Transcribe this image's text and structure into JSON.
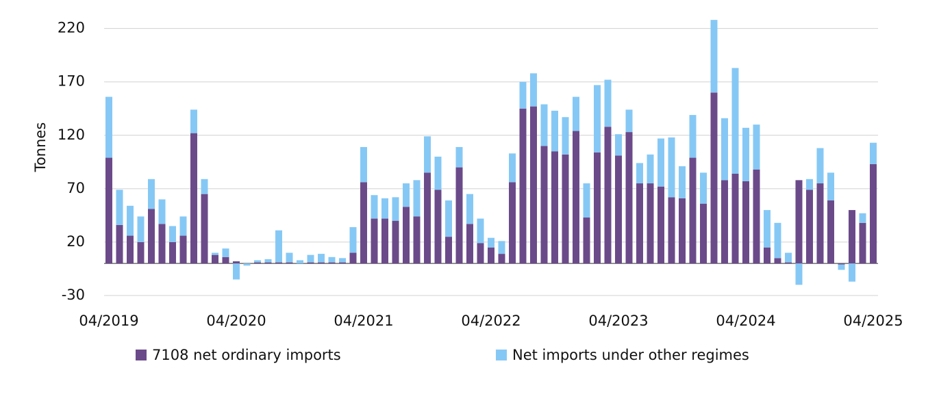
{
  "chart_data": {
    "type": "bar",
    "stacked": true,
    "y_label": "Tonnes",
    "categories": [
      "04/2019",
      null,
      null,
      null,
      null,
      null,
      null,
      null,
      null,
      null,
      null,
      null,
      "04/2020",
      null,
      null,
      null,
      null,
      null,
      null,
      null,
      null,
      null,
      null,
      null,
      "04/2021",
      null,
      null,
      null,
      null,
      null,
      null,
      null,
      null,
      null,
      null,
      null,
      "04/2022",
      null,
      null,
      null,
      null,
      null,
      null,
      null,
      null,
      null,
      null,
      null,
      "04/2023",
      null,
      null,
      null,
      null,
      null,
      null,
      null,
      null,
      null,
      null,
      null,
      "04/2024",
      null,
      null,
      null,
      null,
      null,
      null,
      null,
      null,
      null,
      null,
      null,
      "04/2025"
    ],
    "series": [
      {
        "name": "7108 net ordinary imports",
        "color": "#6b4a8a",
        "values": [
          99,
          36,
          26,
          20,
          51,
          37,
          20,
          26,
          122,
          65,
          8,
          6,
          2,
          0,
          1,
          1,
          1,
          1,
          0,
          1,
          1,
          1,
          1,
          10,
          76,
          42,
          42,
          40,
          53,
          44,
          85,
          69,
          25,
          90,
          37,
          19,
          15,
          9,
          76,
          145,
          147,
          110,
          105,
          102,
          124,
          43,
          104,
          128,
          101,
          123,
          75,
          75,
          72,
          62,
          61,
          99,
          56,
          160,
          78,
          84,
          77,
          88,
          15,
          5,
          1,
          78,
          69,
          75,
          59,
          -1,
          50,
          38,
          93
        ]
      },
      {
        "name": "Net imports under other regimes",
        "color": "#86c8f5",
        "values": [
          57,
          33,
          28,
          24,
          28,
          23,
          15,
          18,
          22,
          14,
          2,
          8,
          -15,
          -2,
          2,
          3,
          30,
          9,
          3,
          7,
          8,
          5,
          4,
          24,
          33,
          22,
          19,
          22,
          22,
          34,
          34,
          31,
          34,
          19,
          28,
          23,
          9,
          12,
          27,
          25,
          31,
          39,
          38,
          35,
          32,
          32,
          63,
          44,
          20,
          21,
          19,
          27,
          45,
          56,
          30,
          40,
          29,
          68,
          58,
          99,
          50,
          42,
          35,
          33,
          9,
          -20,
          10,
          33,
          26,
          -5,
          -17,
          9,
          20
        ]
      }
    ],
    "ylim": [
      -30,
      230
    ],
    "yticks": [
      -30,
      20,
      70,
      120,
      170,
      220
    ],
    "grid": true
  }
}
